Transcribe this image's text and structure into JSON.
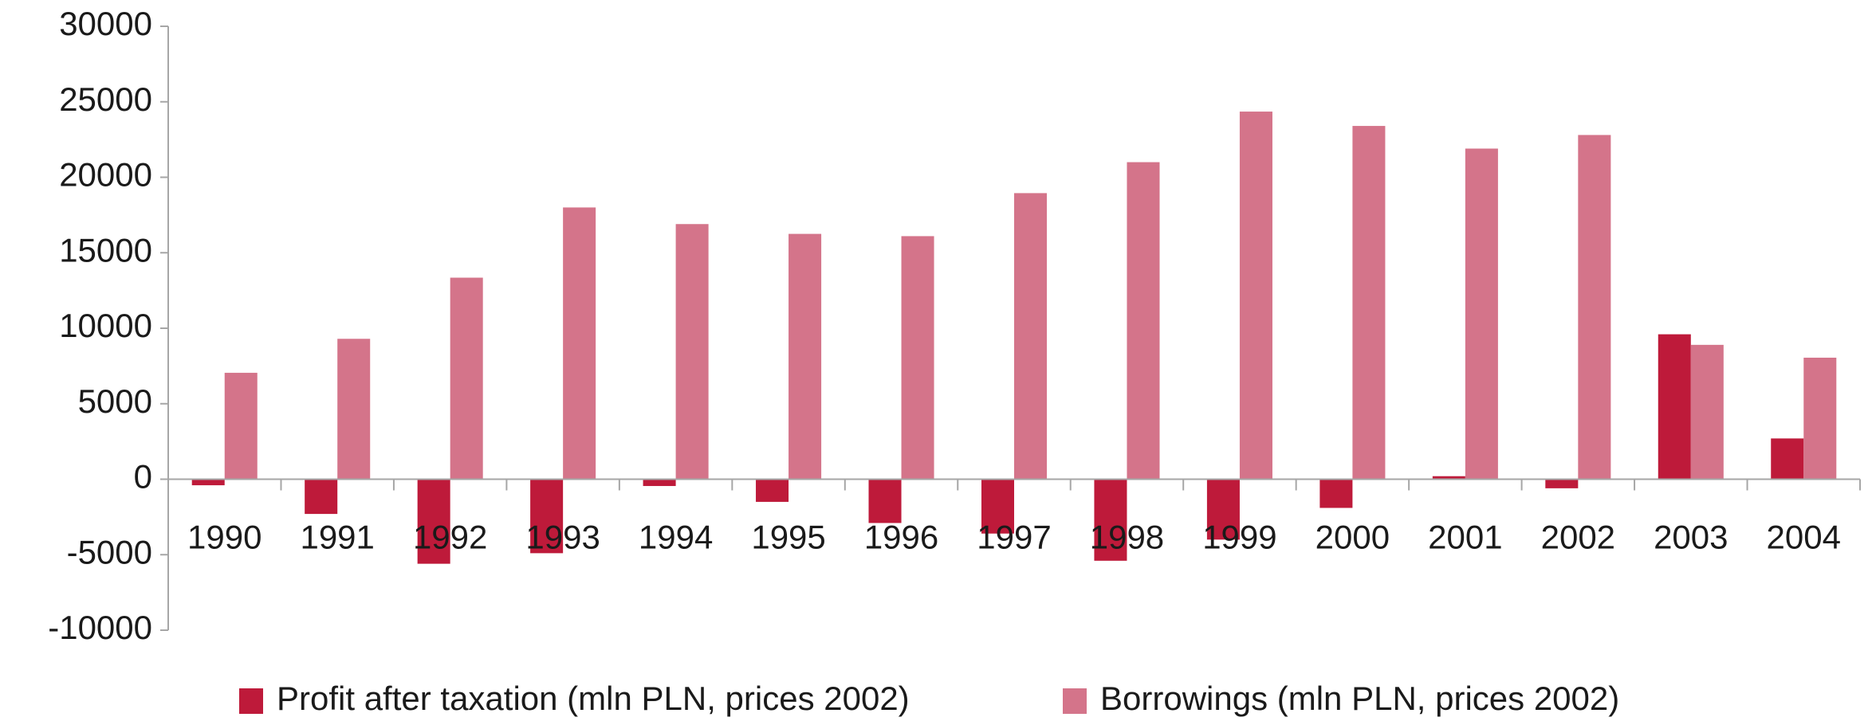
{
  "chart_data": {
    "type": "bar",
    "categories": [
      "1990",
      "1991",
      "1992",
      "1993",
      "1994",
      "1995",
      "1996",
      "1997",
      "1998",
      "1999",
      "2000",
      "2001",
      "2002",
      "2003",
      "2004"
    ],
    "series": [
      {
        "name": "Profit after taxation (mln PLN, prices 2002)",
        "color": "#be1a3a",
        "values": [
          -400,
          -2300,
          -5600,
          -4900,
          -450,
          -1500,
          -2900,
          -3600,
          -5400,
          -4000,
          -1900,
          200,
          -600,
          9600,
          2700
        ]
      },
      {
        "name": "Borrowings  (mln PLN, prices 2002)",
        "color": "#d4748a",
        "values": [
          7050,
          9300,
          13350,
          18000,
          16900,
          16250,
          16100,
          18950,
          21000,
          24350,
          23400,
          21900,
          22800,
          8900,
          8050
        ]
      }
    ],
    "ylim": [
      -10000,
      30000
    ],
    "yticks": [
      -10000,
      -5000,
      0,
      5000,
      10000,
      15000,
      20000,
      25000,
      30000
    ],
    "grid": false,
    "legend": "bottom"
  }
}
